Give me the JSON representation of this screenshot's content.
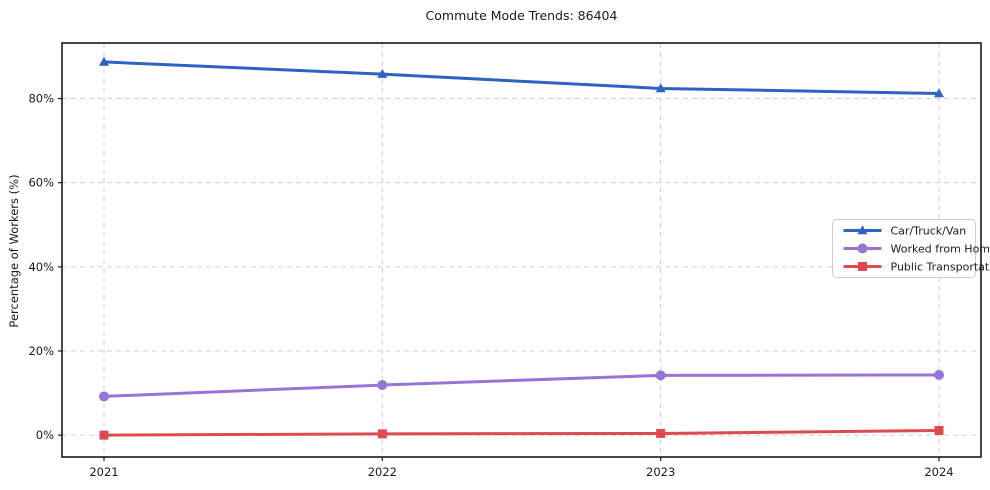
{
  "chart_data": {
    "type": "line",
    "title": "Commute Mode Trends: 86404",
    "xlabel": "",
    "ylabel": "Percentage of Workers (%)",
    "categories": [
      "2021",
      "2022",
      "2023",
      "2024"
    ],
    "series": [
      {
        "name": "Car/Truck/Van",
        "marker": "triangle",
        "color": "#2e63c5",
        "values": [
          88.7,
          85.8,
          82.4,
          81.2
        ]
      },
      {
        "name": "Worked from Home",
        "marker": "circle",
        "color": "#9775d6",
        "values": [
          9.2,
          11.9,
          14.2,
          14.3
        ]
      },
      {
        "name": "Public Transportation",
        "marker": "square",
        "color": "#de4a4d",
        "values": [
          0.0,
          0.3,
          0.4,
          1.1
        ]
      }
    ],
    "ylim": [
      -5.2,
      93.2
    ],
    "yticks": [
      0,
      20,
      40,
      60,
      80
    ],
    "ytick_suffix": "%",
    "grid": true,
    "grid_style": "dashed",
    "legend_position": "center-right",
    "colors": {
      "grid": "#cfcfcf",
      "spine": "#1a1a1a",
      "tick_label": "#1a1a1a",
      "legend_border": "#cccccc",
      "legend_bg": "#ffffff"
    }
  }
}
